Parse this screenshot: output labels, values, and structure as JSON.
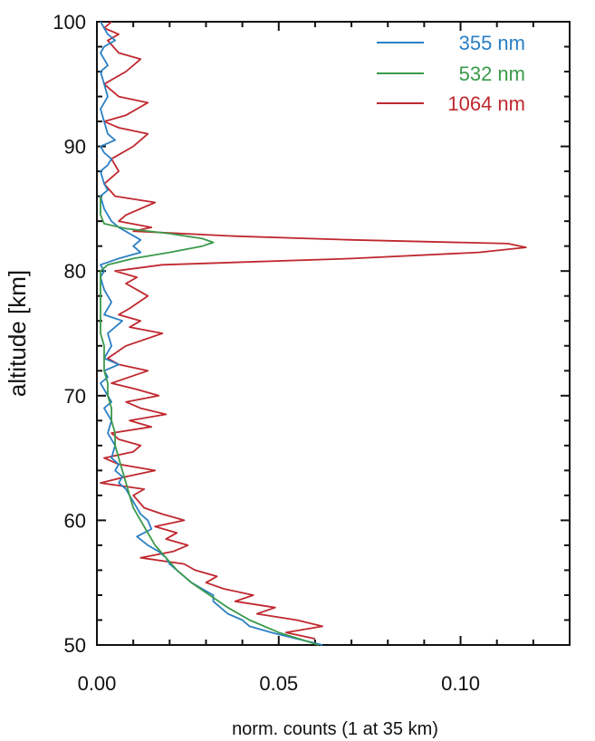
{
  "chart_data": {
    "type": "line",
    "title": "",
    "xlabel": "norm. counts (1 at 35 km)",
    "ylabel": "altitude [km]",
    "xlim": [
      0.0,
      0.13
    ],
    "ylim": [
      50,
      100
    ],
    "x_ticks": [
      0.0,
      0.05,
      0.1
    ],
    "x_tick_labels": [
      "0.00",
      "0.05",
      "0.10"
    ],
    "y_ticks": [
      50,
      60,
      70,
      80,
      90,
      100
    ],
    "y_tick_labels": [
      "50",
      "60",
      "70",
      "80",
      "90",
      "100"
    ],
    "grid": false,
    "legend_position": "top-right",
    "series": [
      {
        "name": "355 nm",
        "color": "#2a7fc4",
        "points": [
          [
            0.062,
            50.0
          ],
          [
            0.055,
            50.5
          ],
          [
            0.048,
            51.0
          ],
          [
            0.042,
            51.5
          ],
          [
            0.04,
            52.0
          ],
          [
            0.036,
            52.5
          ],
          [
            0.034,
            53.0
          ],
          [
            0.032,
            53.5
          ],
          [
            0.032,
            54.0
          ],
          [
            0.029,
            54.5
          ],
          [
            0.026,
            55.0
          ],
          [
            0.024,
            55.5
          ],
          [
            0.022,
            56.0
          ],
          [
            0.02,
            56.5
          ],
          [
            0.019,
            57.0
          ],
          [
            0.017,
            57.5
          ],
          [
            0.014,
            58.0
          ],
          [
            0.011,
            58.7
          ],
          [
            0.015,
            59.3
          ],
          [
            0.014,
            60.0
          ],
          [
            0.012,
            60.5
          ],
          [
            0.011,
            61.0
          ],
          [
            0.01,
            61.5
          ],
          [
            0.009,
            62.0
          ],
          [
            0.008,
            62.5
          ],
          [
            0.006,
            63.0
          ],
          [
            0.007,
            63.5
          ],
          [
            0.005,
            64.0
          ],
          [
            0.006,
            64.5
          ],
          [
            0.004,
            65.0
          ],
          [
            0.005,
            66.0
          ],
          [
            0.003,
            67.0
          ],
          [
            0.004,
            68.0
          ],
          [
            0.002,
            69.0
          ],
          [
            0.004,
            69.5
          ],
          [
            0.003,
            70.0
          ],
          [
            0.001,
            71.0
          ],
          [
            0.003,
            71.5
          ],
          [
            0.002,
            72.0
          ],
          [
            0.006,
            72.5
          ],
          [
            0.002,
            73.0
          ],
          [
            0.004,
            74.0
          ],
          [
            0.003,
            75.0
          ],
          [
            0.007,
            76.0
          ],
          [
            0.002,
            76.5
          ],
          [
            0.004,
            77.5
          ],
          [
            0.002,
            78.5
          ],
          [
            0.001,
            79.5
          ],
          [
            0.002,
            80.0
          ],
          [
            0.001,
            80.5
          ],
          [
            0.006,
            81.0
          ],
          [
            0.012,
            81.5
          ],
          [
            0.01,
            82.0
          ],
          [
            0.012,
            82.5
          ],
          [
            0.009,
            83.0
          ],
          [
            0.006,
            83.5
          ],
          [
            0.004,
            84.0
          ],
          [
            0.003,
            84.5
          ],
          [
            0.002,
            85.0
          ],
          [
            0.001,
            86.0
          ],
          [
            0.003,
            86.5
          ],
          [
            0.002,
            87.0
          ],
          [
            0.001,
            88.0
          ],
          [
            0.003,
            88.5
          ],
          [
            0.004,
            89.0
          ],
          [
            0.002,
            89.5
          ],
          [
            0.001,
            90.0
          ],
          [
            0.005,
            90.5
          ],
          [
            0.003,
            91.0
          ],
          [
            0.002,
            92.0
          ],
          [
            0.001,
            93.0
          ],
          [
            0.003,
            94.0
          ],
          [
            0.002,
            95.0
          ],
          [
            0.001,
            96.0
          ],
          [
            0.003,
            96.5
          ],
          [
            0.001,
            97.5
          ],
          [
            0.002,
            98.0
          ],
          [
            0.005,
            98.5
          ],
          [
            0.003,
            99.0
          ],
          [
            0.001,
            100.0
          ]
        ]
      },
      {
        "name": "532 nm",
        "color": "#3a9a4a",
        "points": [
          [
            0.061,
            50.0
          ],
          [
            0.05,
            51.0
          ],
          [
            0.042,
            52.0
          ],
          [
            0.036,
            53.0
          ],
          [
            0.031,
            54.0
          ],
          [
            0.026,
            55.0
          ],
          [
            0.022,
            56.0
          ],
          [
            0.019,
            57.0
          ],
          [
            0.016,
            58.0
          ],
          [
            0.014,
            59.0
          ],
          [
            0.012,
            60.0
          ],
          [
            0.01,
            61.0
          ],
          [
            0.009,
            62.0
          ],
          [
            0.008,
            63.0
          ],
          [
            0.007,
            64.0
          ],
          [
            0.006,
            65.0
          ],
          [
            0.005,
            66.0
          ],
          [
            0.005,
            67.0
          ],
          [
            0.004,
            68.0
          ],
          [
            0.004,
            69.0
          ],
          [
            0.003,
            70.0
          ],
          [
            0.003,
            71.0
          ],
          [
            0.002,
            72.0
          ],
          [
            0.002,
            73.0
          ],
          [
            0.002,
            74.0
          ],
          [
            0.001,
            75.0
          ],
          [
            0.001,
            77.0
          ],
          [
            0.001,
            79.0
          ],
          [
            0.001,
            80.0
          ],
          [
            0.003,
            80.5
          ],
          [
            0.01,
            81.0
          ],
          [
            0.02,
            81.5
          ],
          [
            0.029,
            82.0
          ],
          [
            0.032,
            82.3
          ],
          [
            0.029,
            82.6
          ],
          [
            0.02,
            83.0
          ],
          [
            0.008,
            83.4
          ],
          [
            0.002,
            83.8
          ],
          [
            0.001,
            84.5
          ],
          [
            0.001,
            86.0
          ]
        ]
      },
      {
        "name": "1064 nm",
        "color": "#c0282f",
        "points": [
          [
            0.06,
            50.5
          ],
          [
            0.052,
            51.0
          ],
          [
            0.062,
            51.5
          ],
          [
            0.055,
            52.0
          ],
          [
            0.044,
            52.5
          ],
          [
            0.049,
            53.0
          ],
          [
            0.038,
            53.5
          ],
          [
            0.043,
            54.0
          ],
          [
            0.035,
            54.5
          ],
          [
            0.03,
            55.0
          ],
          [
            0.033,
            55.5
          ],
          [
            0.027,
            56.0
          ],
          [
            0.024,
            56.5
          ],
          [
            0.012,
            57.0
          ],
          [
            0.021,
            57.5
          ],
          [
            0.025,
            58.0
          ],
          [
            0.019,
            58.5
          ],
          [
            0.022,
            59.0
          ],
          [
            0.016,
            59.5
          ],
          [
            0.024,
            60.0
          ],
          [
            0.018,
            60.5
          ],
          [
            0.013,
            61.0
          ],
          [
            0.01,
            62.0
          ],
          [
            0.013,
            62.5
          ],
          [
            0.001,
            63.0
          ],
          [
            0.008,
            63.5
          ],
          [
            0.016,
            64.0
          ],
          [
            0.006,
            64.5
          ],
          [
            0.002,
            65.0
          ],
          [
            0.01,
            65.5
          ],
          [
            0.012,
            66.0
          ],
          [
            0.006,
            66.5
          ],
          [
            0.004,
            67.0
          ],
          [
            0.015,
            67.5
          ],
          [
            0.009,
            68.0
          ],
          [
            0.019,
            68.5
          ],
          [
            0.012,
            69.0
          ],
          [
            0.008,
            69.5
          ],
          [
            0.017,
            70.0
          ],
          [
            0.011,
            70.5
          ],
          [
            0.004,
            71.0
          ],
          [
            0.009,
            71.5
          ],
          [
            0.014,
            72.0
          ],
          [
            0.006,
            72.5
          ],
          [
            0.003,
            73.0
          ],
          [
            0.008,
            74.0
          ],
          [
            0.018,
            75.0
          ],
          [
            0.009,
            75.5
          ],
          [
            0.012,
            76.0
          ],
          [
            0.006,
            76.5
          ],
          [
            0.009,
            77.0
          ],
          [
            0.014,
            78.0
          ],
          [
            0.008,
            79.0
          ],
          [
            0.011,
            79.5
          ],
          [
            0.005,
            80.0
          ],
          [
            0.018,
            80.5
          ],
          [
            0.07,
            81.0
          ],
          [
            0.105,
            81.5
          ],
          [
            0.118,
            81.9
          ],
          [
            0.113,
            82.2
          ],
          [
            0.07,
            82.5
          ],
          [
            0.038,
            82.8
          ],
          [
            0.01,
            83.2
          ],
          [
            0.015,
            83.5
          ],
          [
            0.006,
            84.0
          ],
          [
            0.008,
            84.5
          ],
          [
            0.016,
            85.5
          ],
          [
            0.005,
            86.0
          ],
          [
            0.002,
            87.0
          ],
          [
            0.006,
            88.0
          ],
          [
            0.004,
            89.0
          ],
          [
            0.01,
            90.0
          ],
          [
            0.014,
            91.0
          ],
          [
            0.006,
            91.5
          ],
          [
            0.002,
            92.0
          ],
          [
            0.008,
            92.5
          ],
          [
            0.014,
            93.5
          ],
          [
            0.006,
            94.0
          ],
          [
            0.002,
            95.0
          ],
          [
            0.008,
            96.0
          ],
          [
            0.012,
            97.0
          ],
          [
            0.006,
            97.5
          ],
          [
            0.003,
            98.5
          ],
          [
            0.006,
            99.0
          ],
          [
            0.002,
            99.5
          ],
          [
            0.004,
            100.0
          ]
        ]
      }
    ]
  }
}
